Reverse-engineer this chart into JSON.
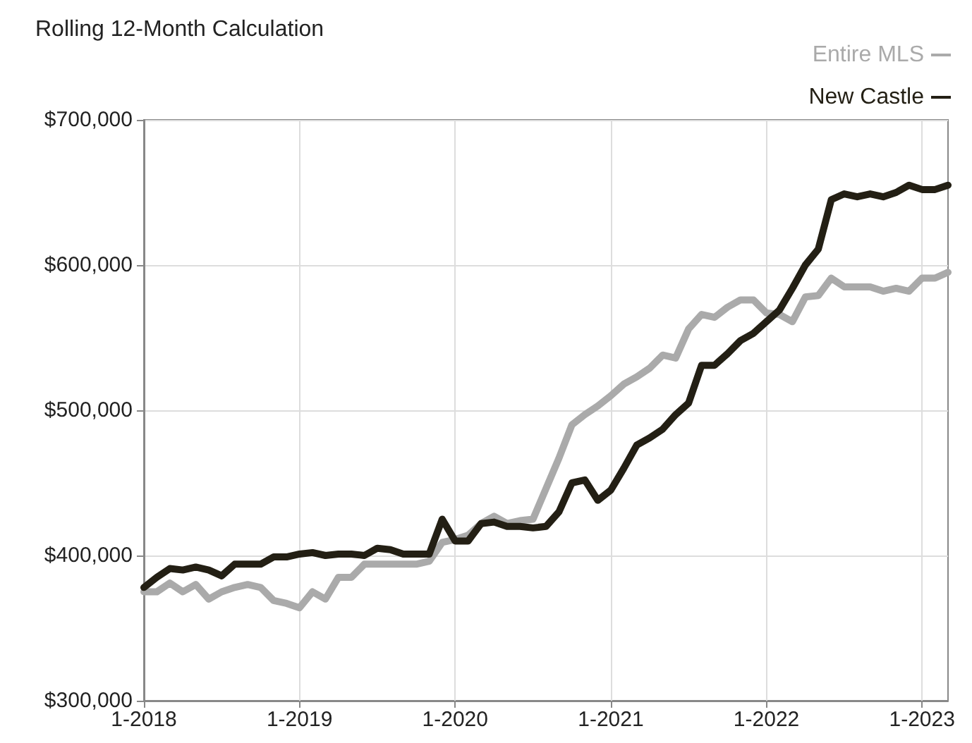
{
  "chart_data": {
    "type": "line",
    "title": "Rolling 12-Month Calculation",
    "categories": [
      "1-2018",
      null,
      null,
      null,
      null,
      null,
      null,
      null,
      null,
      null,
      null,
      null,
      "1-2019",
      null,
      null,
      null,
      null,
      null,
      null,
      null,
      null,
      null,
      null,
      null,
      "1-2020",
      null,
      null,
      null,
      null,
      null,
      null,
      null,
      null,
      null,
      null,
      null,
      "1-2021",
      null,
      null,
      null,
      null,
      null,
      null,
      null,
      null,
      null,
      null,
      null,
      "1-2022",
      null,
      null,
      null,
      null,
      null,
      null,
      null,
      null,
      null,
      null,
      null,
      "1-2023",
      null,
      null
    ],
    "series": [
      {
        "name": "Entire MLS",
        "color": "#aaaaaa",
        "values": [
          375000,
          375000,
          381000,
          375000,
          380000,
          370000,
          375000,
          378000,
          380000,
          378000,
          369000,
          367000,
          364000,
          375000,
          370000,
          385000,
          385000,
          394000,
          394000,
          394000,
          394000,
          394000,
          396000,
          409000,
          411000,
          414000,
          422000,
          427000,
          422000,
          424000,
          425000,
          446000,
          467000,
          490000,
          497000,
          503000,
          510000,
          518000,
          523000,
          529000,
          538000,
          536000,
          556000,
          566000,
          564000,
          571000,
          576000,
          576000,
          567000,
          566000,
          561000,
          578000,
          579000,
          591000,
          585000,
          585000,
          585000,
          582000,
          584000,
          582000,
          591000,
          591000,
          595000
        ]
      },
      {
        "name": "New Castle",
        "color": "#231f14",
        "values": [
          378000,
          385000,
          391000,
          390000,
          392000,
          390000,
          386000,
          394000,
          394000,
          394000,
          399000,
          399000,
          401000,
          402000,
          400000,
          401000,
          401000,
          400000,
          405000,
          404000,
          401000,
          401000,
          401000,
          425000,
          410000,
          410000,
          422000,
          423000,
          420000,
          420000,
          419000,
          420000,
          430000,
          450000,
          452000,
          438000,
          445000,
          460000,
          476000,
          481000,
          487000,
          497000,
          505000,
          531000,
          531000,
          539000,
          548000,
          553000,
          561000,
          569000,
          584000,
          600000,
          611000,
          645000,
          649000,
          647000,
          649000,
          647000,
          650000,
          655000,
          652000,
          652000,
          655000
        ]
      }
    ],
    "ylim": [
      300000,
      700000
    ],
    "yticks": [
      {
        "value": 300000,
        "label": "$300,000"
      },
      {
        "value": 400000,
        "label": "$400,000"
      },
      {
        "value": 500000,
        "label": "$500,000"
      },
      {
        "value": 600000,
        "label": "$600,000"
      },
      {
        "value": 700000,
        "label": "$700,000"
      }
    ],
    "grid": true,
    "legend": "top right",
    "marker": "none",
    "line_style": "solid"
  }
}
